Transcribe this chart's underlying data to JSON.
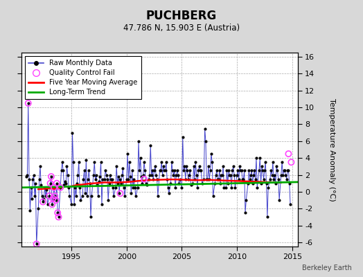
{
  "title": "PUCHBERG",
  "subtitle": "47.786 N, 15.903 E (Austria)",
  "ylabel": "Temperature Anomaly (°C)",
  "watermark": "Berkeley Earth",
  "xlim": [
    1990.5,
    2015.5
  ],
  "ylim": [
    -6.5,
    16.5
  ],
  "yticks": [
    -6,
    -4,
    -2,
    0,
    2,
    4,
    6,
    8,
    10,
    12,
    14,
    16
  ],
  "xticks": [
    1995,
    2000,
    2005,
    2010,
    2015
  ],
  "bg_color": "#d8d8d8",
  "plot_bg_color": "#ffffff",
  "raw_line_color": "#4444cc",
  "raw_dot_color": "#000000",
  "qc_fail_color": "#ff44ff",
  "moving_avg_color": "#ff0000",
  "trend_color": "#00aa00",
  "raw_data_x": [
    1990.917,
    1991.0,
    1991.083,
    1991.167,
    1991.25,
    1991.333,
    1991.417,
    1991.5,
    1991.583,
    1991.667,
    1991.75,
    1991.833,
    1992.0,
    1992.083,
    1992.167,
    1992.25,
    1992.333,
    1992.417,
    1992.5,
    1992.583,
    1992.667,
    1992.75,
    1992.833,
    1993.0,
    1993.083,
    1993.167,
    1993.25,
    1993.333,
    1993.417,
    1993.5,
    1993.583,
    1993.667,
    1993.75,
    1993.833,
    1994.0,
    1994.083,
    1994.167,
    1994.25,
    1994.333,
    1994.417,
    1994.5,
    1994.583,
    1994.667,
    1994.75,
    1994.833,
    1995.0,
    1995.083,
    1995.167,
    1995.25,
    1995.333,
    1995.417,
    1995.5,
    1995.583,
    1995.667,
    1995.75,
    1995.833,
    1996.0,
    1996.083,
    1996.167,
    1996.25,
    1996.333,
    1996.417,
    1996.5,
    1996.583,
    1996.667,
    1996.75,
    1996.833,
    1997.0,
    1997.083,
    1997.167,
    1997.25,
    1997.333,
    1997.417,
    1997.5,
    1997.583,
    1997.667,
    1997.75,
    1997.833,
    1998.0,
    1998.083,
    1998.167,
    1998.25,
    1998.333,
    1998.417,
    1998.5,
    1998.583,
    1998.667,
    1998.75,
    1998.833,
    1999.0,
    1999.083,
    1999.167,
    1999.25,
    1999.333,
    1999.417,
    1999.5,
    1999.583,
    1999.667,
    1999.75,
    1999.833,
    2000.0,
    2000.083,
    2000.167,
    2000.25,
    2000.333,
    2000.417,
    2000.5,
    2000.583,
    2000.667,
    2000.75,
    2000.833,
    2001.0,
    2001.083,
    2001.167,
    2001.25,
    2001.333,
    2001.417,
    2001.5,
    2001.583,
    2001.667,
    2001.75,
    2001.833,
    2002.0,
    2002.083,
    2002.167,
    2002.25,
    2002.333,
    2002.417,
    2002.5,
    2002.583,
    2002.667,
    2002.75,
    2002.833,
    2003.0,
    2003.083,
    2003.167,
    2003.25,
    2003.333,
    2003.417,
    2003.5,
    2003.583,
    2003.667,
    2003.75,
    2003.833,
    2004.0,
    2004.083,
    2004.167,
    2004.25,
    2004.333,
    2004.417,
    2004.5,
    2004.583,
    2004.667,
    2004.75,
    2004.833,
    2005.0,
    2005.083,
    2005.167,
    2005.25,
    2005.333,
    2005.417,
    2005.5,
    2005.583,
    2005.667,
    2005.75,
    2005.833,
    2006.0,
    2006.083,
    2006.167,
    2006.25,
    2006.333,
    2006.417,
    2006.5,
    2006.583,
    2006.667,
    2006.75,
    2006.833,
    2007.0,
    2007.083,
    2007.167,
    2007.25,
    2007.333,
    2007.417,
    2007.5,
    2007.583,
    2007.667,
    2007.75,
    2007.833,
    2008.0,
    2008.083,
    2008.167,
    2008.25,
    2008.333,
    2008.417,
    2008.5,
    2008.583,
    2008.667,
    2008.75,
    2008.833,
    2009.0,
    2009.083,
    2009.167,
    2009.25,
    2009.333,
    2009.417,
    2009.5,
    2009.583,
    2009.667,
    2009.75,
    2009.833,
    2010.0,
    2010.083,
    2010.167,
    2010.25,
    2010.333,
    2010.417,
    2010.5,
    2010.583,
    2010.667,
    2010.75,
    2010.833,
    2011.0,
    2011.083,
    2011.167,
    2011.25,
    2011.333,
    2011.417,
    2011.5,
    2011.583,
    2011.667,
    2011.75,
    2011.833,
    2012.0,
    2012.083,
    2012.167,
    2012.25,
    2012.333,
    2012.417,
    2012.5,
    2012.583,
    2012.667,
    2012.75,
    2012.833,
    2013.0,
    2013.083,
    2013.167,
    2013.25,
    2013.333,
    2013.417,
    2013.5,
    2013.583,
    2013.667,
    2013.75,
    2013.833,
    2014.0,
    2014.083,
    2014.167,
    2014.25,
    2014.333,
    2014.417,
    2014.5,
    2014.583,
    2014.667,
    2014.75,
    2014.833
  ],
  "raw_data_y": [
    1.8,
    2.0,
    10.5,
    1.5,
    -2.2,
    0.5,
    -0.8,
    1.5,
    2.0,
    -0.5,
    1.0,
    -6.2,
    -2.0,
    1.5,
    3.0,
    0.8,
    -0.5,
    -1.2,
    -0.8,
    0.5,
    -0.5,
    0.2,
    -1.5,
    -0.5,
    1.0,
    1.8,
    -1.5,
    -0.8,
    0.5,
    -0.5,
    -1.0,
    1.0,
    -2.5,
    -3.0,
    0.5,
    2.5,
    3.5,
    2.5,
    0.8,
    1.2,
    1.0,
    3.0,
    2.0,
    0.5,
    -0.5,
    -1.5,
    7.0,
    3.5,
    -1.5,
    0.5,
    -0.5,
    1.0,
    2.0,
    3.5,
    0.5,
    -1.0,
    -0.5,
    1.5,
    2.5,
    -0.2,
    3.8,
    -0.5,
    1.5,
    2.5,
    1.0,
    -3.0,
    -0.5,
    2.0,
    3.5,
    1.5,
    2.0,
    0.8,
    -0.5,
    1.2,
    1.8,
    3.5,
    -1.5,
    1.5,
    1.5,
    2.5,
    2.0,
    1.5,
    -1.0,
    1.0,
    2.0,
    1.5,
    1.5,
    0.5,
    -0.5,
    0.5,
    3.0,
    1.0,
    1.8,
    -0.2,
    1.5,
    1.0,
    2.0,
    2.8,
    0.5,
    -0.5,
    1.5,
    4.5,
    1.5,
    3.5,
    1.8,
    -0.2,
    2.5,
    0.5,
    1.5,
    0.5,
    -0.5,
    0.5,
    6.0,
    2.5,
    4.0,
    1.8,
    1.0,
    2.0,
    3.5,
    2.5,
    1.0,
    0.8,
    1.5,
    2.0,
    5.5,
    2.0,
    2.5,
    1.5,
    2.5,
    3.0,
    2.0,
    1.5,
    -0.5,
    2.5,
    2.5,
    3.5,
    2.0,
    3.0,
    2.5,
    2.5,
    3.5,
    1.5,
    0.5,
    -0.2,
    1.0,
    3.5,
    2.5,
    2.0,
    2.5,
    0.5,
    2.0,
    2.5,
    2.0,
    1.0,
    1.5,
    0.5,
    6.5,
    2.5,
    3.0,
    1.5,
    3.0,
    2.5,
    1.5,
    2.0,
    2.5,
    0.8,
    1.0,
    3.0,
    1.5,
    3.5,
    2.0,
    0.5,
    2.5,
    3.0,
    2.5,
    2.5,
    1.0,
    1.5,
    7.5,
    6.0,
    1.5,
    1.5,
    3.0,
    1.5,
    2.5,
    4.5,
    3.5,
    -0.5,
    1.0,
    2.0,
    2.5,
    1.5,
    1.5,
    2.5,
    1.0,
    2.0,
    2.0,
    3.0,
    0.5,
    0.5,
    2.5,
    1.0,
    2.5,
    2.0,
    2.0,
    0.5,
    2.5,
    3.0,
    2.0,
    0.5,
    2.0,
    2.5,
    1.5,
    3.0,
    2.5,
    2.5,
    1.5,
    1.5,
    2.5,
    -2.5,
    -1.0,
    1.0,
    2.5,
    1.5,
    2.0,
    2.5,
    1.0,
    2.0,
    2.5,
    1.5,
    4.0,
    0.5,
    2.5,
    4.0,
    1.0,
    3.0,
    2.5,
    1.5,
    2.5,
    3.5,
    1.0,
    -3.0,
    0.5,
    1.5,
    2.5,
    2.0,
    3.5,
    1.5,
    2.0,
    1.0,
    3.0,
    2.5,
    1.5,
    -1.0,
    2.0,
    3.5,
    2.0,
    2.5,
    2.5,
    2.0,
    1.5,
    2.5,
    2.5,
    1.0,
    -1.5
  ],
  "qc_fail_x": [
    1991.083,
    1991.833,
    1992.417,
    1993.0,
    1993.083,
    1993.167,
    1993.25,
    1993.333,
    1993.417,
    1993.5,
    1993.583,
    1993.667,
    1993.75,
    1993.833,
    1994.0,
    1999.417,
    2001.583,
    2014.667,
    2014.917
  ],
  "qc_fail_y": [
    10.5,
    -6.2,
    -1.2,
    -0.5,
    1.0,
    1.8,
    -1.5,
    -0.8,
    0.5,
    -0.5,
    -1.0,
    1.0,
    -2.5,
    -3.0,
    0.5,
    -0.2,
    1.5,
    4.5,
    3.5
  ],
  "moving_avg_x": [
    1992.0,
    1992.5,
    1993.0,
    1993.5,
    1994.0,
    1994.5,
    1995.0,
    1995.5,
    1996.0,
    1996.5,
    1997.0,
    1997.5,
    1998.0,
    1998.5,
    1999.0,
    1999.5,
    2000.0,
    2000.5,
    2001.0,
    2001.5,
    2002.0,
    2002.5,
    2003.0,
    2003.5,
    2004.0,
    2004.5,
    2005.0,
    2005.5,
    2006.0,
    2006.5,
    2007.0,
    2007.5,
    2008.0,
    2008.5,
    2009.0,
    2009.5,
    2010.0,
    2010.5,
    2011.0,
    2011.5,
    2012.0,
    2012.5,
    2013.0,
    2013.5,
    2014.0
  ],
  "moving_avg_y": [
    0.3,
    0.35,
    0.4,
    0.35,
    0.5,
    0.6,
    0.65,
    0.8,
    0.85,
    0.95,
    1.0,
    1.05,
    1.1,
    1.1,
    1.1,
    1.12,
    1.15,
    1.2,
    1.28,
    1.32,
    1.38,
    1.4,
    1.42,
    1.44,
    1.46,
    1.45,
    1.43,
    1.4,
    1.38,
    1.37,
    1.38,
    1.4,
    1.38,
    1.35,
    1.32,
    1.3,
    1.28,
    1.25,
    1.22,
    1.2,
    1.18,
    1.15,
    1.12,
    1.1,
    1.08
  ],
  "trend_x": [
    1990.5,
    2015.5
  ],
  "trend_y": [
    0.5,
    1.15
  ]
}
